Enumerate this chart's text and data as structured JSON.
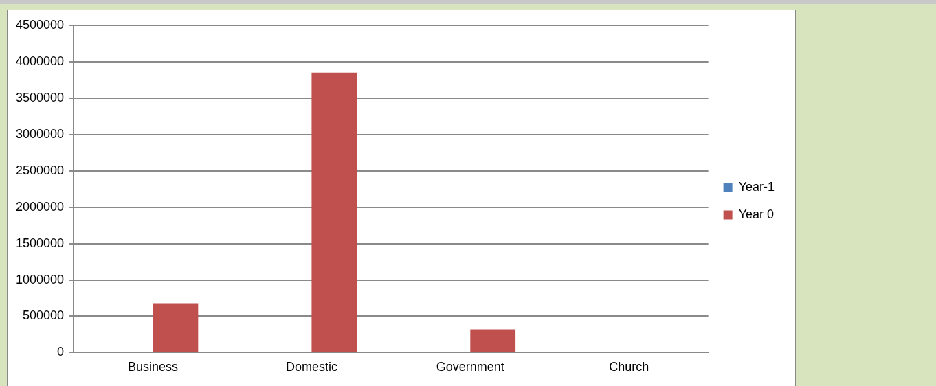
{
  "chart_data": {
    "type": "bar",
    "categories": [
      "Business",
      "Domestic",
      "Government",
      "Church"
    ],
    "series": [
      {
        "name": "Year-1",
        "color": "#4f81bd",
        "values": [
          0,
          0,
          0,
          0
        ]
      },
      {
        "name": "Year 0",
        "color": "#c0504d",
        "values": [
          680000,
          3850000,
          320000,
          0
        ]
      }
    ],
    "ylim": [
      0,
      4500000
    ],
    "yticks": [
      0,
      500000,
      1000000,
      1500000,
      2000000,
      2500000,
      3000000,
      3500000,
      4000000,
      4500000
    ],
    "grid": "y",
    "legend": "right"
  }
}
